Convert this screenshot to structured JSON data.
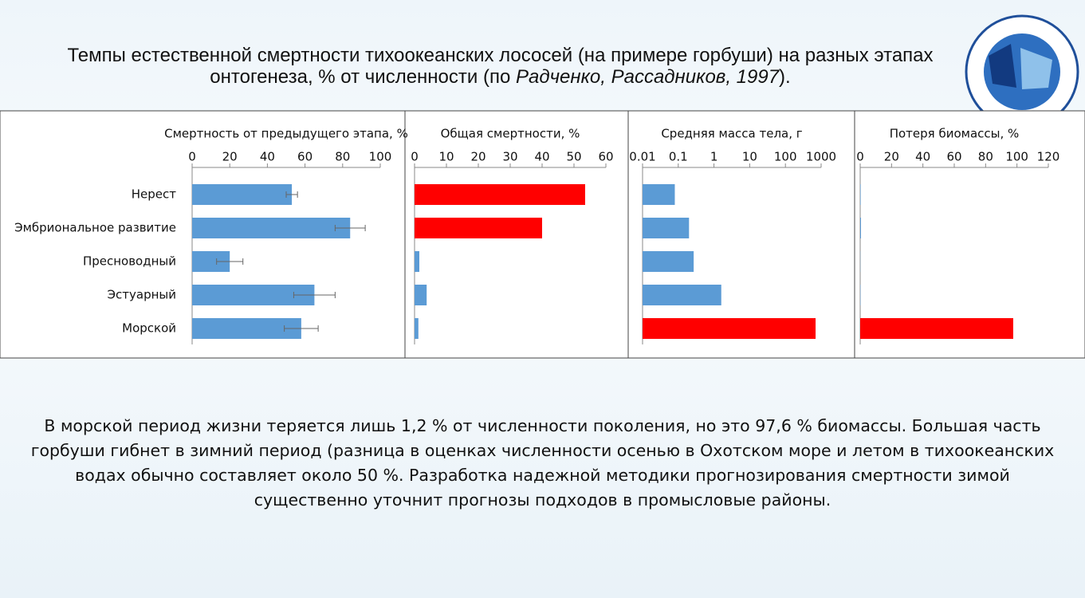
{
  "page_title": {
    "text": "Темпы естественной смертности тихоокеанских лососей (на примере горбуши) на разных этапах онтогенеза, % от численности (по ",
    "italic": "Радченко, Рассадников, 1997",
    "end": ")."
  },
  "chart_data": [
    {
      "type": "bar",
      "title": "Смертность от предыдущего этапа, %",
      "categories": [
        "Нерест",
        "Эмбриональное развитие",
        "Пресноводный",
        "Эстуарный",
        "Морской"
      ],
      "values": [
        53,
        84,
        20,
        65,
        58
      ],
      "errors": [
        3,
        8,
        7,
        11,
        9
      ],
      "colors": [
        "#5b9bd5",
        "#5b9bd5",
        "#5b9bd5",
        "#5b9bd5",
        "#5b9bd5"
      ],
      "xlim": [
        0,
        100
      ],
      "xticks": [
        0,
        20,
        40,
        60,
        80,
        100
      ]
    },
    {
      "type": "bar",
      "title": "Общая смертности, %",
      "values": [
        53.5,
        40,
        1.5,
        3.8,
        1.2
      ],
      "colors": [
        "#ff0000",
        "#ff0000",
        "#5b9bd5",
        "#5b9bd5",
        "#5b9bd5"
      ],
      "xlim": [
        0,
        60
      ],
      "xticks": [
        0,
        10,
        20,
        30,
        40,
        50,
        60
      ]
    },
    {
      "type": "bar",
      "title": "Средняя масса тела, г",
      "log_scale": true,
      "values": [
        0.08,
        0.2,
        0.27,
        1.6,
        700
      ],
      "colors": [
        "#5b9bd5",
        "#5b9bd5",
        "#5b9bd5",
        "#5b9bd5",
        "#ff0000"
      ],
      "xlim": [
        0.01,
        1000
      ],
      "xticks": [
        0.01,
        0.1,
        1,
        10,
        100,
        1000
      ]
    },
    {
      "type": "bar",
      "title": "Потеря биомассы, %",
      "values": [
        0.3,
        0.5,
        0.1,
        0.2,
        97.6
      ],
      "colors": [
        "#5b9bd5",
        "#5b9bd5",
        "#5b9bd5",
        "#5b9bd5",
        "#ff0000"
      ],
      "xlim": [
        0,
        120
      ],
      "xticks": [
        0,
        20,
        40,
        60,
        80,
        100,
        120
      ]
    }
  ],
  "footer_text": "В морской период жизни теряется лишь 1,2 % от численности поколения, но это 97,6 % биомассы. Большая часть горбуши гибнет в зимний период (разница в оценках численности осенью в Охотском море и летом в тихоокеанских водах обычно составляет около 50 %. Разработка надежной методики прогнозирования смертности зимой существенно уточнит прогнозы подходов в промысловые районы."
}
